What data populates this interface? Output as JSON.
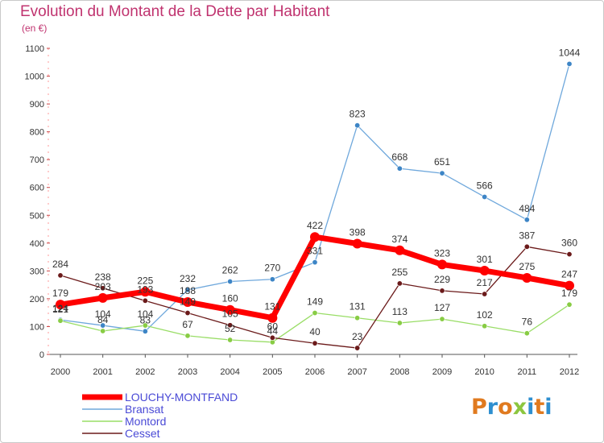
{
  "header": {
    "title": "Evolution du Montant de la Dette par Habitant",
    "subtitle": "(en €)"
  },
  "logo": {
    "text": "Proxiti",
    "colors": [
      "#e07a1f",
      "#2e8fd0",
      "#e07a1f",
      "#8cc63f",
      "#2e8fd0",
      "#e07a1f",
      "#2e8fd0"
    ]
  },
  "chart_data": {
    "type": "line",
    "title": "Evolution du Montant de la Dette par Habitant",
    "subtitle": "(en €)",
    "x": [
      "2000",
      "2001",
      "2002",
      "2003",
      "2004",
      "2005",
      "2006",
      "2007",
      "2008",
      "2009",
      "2010",
      "2011",
      "2012"
    ],
    "ylim": [
      0,
      1100
    ],
    "yticks": [
      0,
      100,
      200,
      300,
      400,
      500,
      600,
      700,
      800,
      900,
      1000,
      1100
    ],
    "grid": false,
    "legend_position": "bottom-left",
    "series": [
      {
        "name": "LOUCHY-MONTFAND",
        "color": "#ff0000",
        "marker": "#ff0000",
        "values": [
          179,
          203,
          225,
          188,
          160,
          131,
          422,
          398,
          374,
          323,
          301,
          275,
          247
        ],
        "labels": [
          "179",
          "203",
          "225",
          "188",
          "160",
          "131",
          "422",
          "398",
          "374",
          "323",
          "301",
          "275",
          "247"
        ]
      },
      {
        "name": "Bransat",
        "color": "#6fa8dc",
        "marker": "#3d85c6",
        "values": [
          124,
          104,
          83,
          232,
          262,
          270,
          331,
          823,
          668,
          651,
          566,
          484,
          1044
        ],
        "labels": [
          "124",
          "104",
          "83",
          "232",
          "262",
          "270",
          "331",
          "823",
          "668",
          "651",
          "566",
          "484",
          "1044"
        ]
      },
      {
        "name": "Montord",
        "color": "#99dd66",
        "marker": "#88cc44",
        "values": [
          121,
          84,
          104,
          67,
          52,
          44,
          149,
          131,
          113,
          127,
          102,
          76,
          179
        ],
        "labels": [
          "121",
          "84",
          "104",
          "67",
          "52",
          "44",
          "149",
          "131",
          "113",
          "127",
          "102",
          "76",
          "179"
        ]
      },
      {
        "name": "Cesset",
        "color": "#6b1a1a",
        "marker": "#6b1a1a",
        "values": [
          284,
          238,
          193,
          149,
          105,
          60,
          40,
          23,
          255,
          229,
          217,
          387,
          360
        ],
        "labels": [
          "284",
          "238",
          "193",
          "149",
          "105",
          "60",
          "40",
          "23",
          "255",
          "229",
          "217",
          "387",
          "360"
        ]
      }
    ]
  }
}
